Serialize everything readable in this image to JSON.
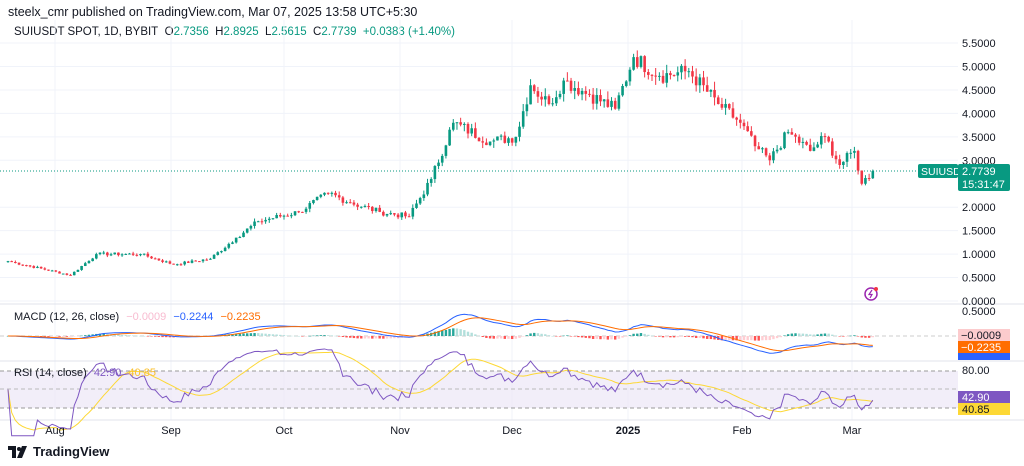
{
  "header": {
    "published": "steelx_cmr published on TradingView.com, Mar 07, 2025 13:58 UTC+5:30"
  },
  "legend": {
    "symbol": "SUIUSDT SPOT, 1D, BYBIT",
    "o_label": "O",
    "o": "2.7356",
    "h_label": "H",
    "h": "2.8925",
    "l_label": "L",
    "l": "2.5615",
    "c_label": "C",
    "c": "2.7739",
    "change": "+0.0383 (+1.40%)"
  },
  "macd": {
    "title": "MACD (12, 26, close)",
    "hist": "−0.0009",
    "macd": "−0.2244",
    "signal": "−0.2235",
    "axis_label": "0.5000"
  },
  "rsi": {
    "title": "RSI (14, close)",
    "rsi": "42.90",
    "ma": "40.85",
    "axis_label": "80.00"
  },
  "badges": {
    "symbol": "SUIUSDT",
    "price": "2.7739",
    "countdown": "15:31:47"
  },
  "footer": {
    "brand": "TradingView"
  },
  "colors": {
    "up": "#089981",
    "down": "#f23645",
    "macd": "#2962ff",
    "signal": "#ff6d00",
    "rsi": "#7e57c2",
    "rsi_ma": "#fdd835"
  },
  "chart_data": {
    "type": "candlestick",
    "symbol": "SUIUSDT",
    "interval": "1D",
    "ylim": [
      0,
      5.5
    ],
    "y_ticks": [
      "5.5000",
      "5.0000",
      "4.5000",
      "4.0000",
      "3.5000",
      "3.0000",
      "2.0000",
      "1.5000",
      "1.0000",
      "0.5000",
      "0.0000"
    ],
    "x_ticks": [
      "Aug",
      "Sep",
      "Oct",
      "Nov",
      "Dec",
      "2025",
      "Feb",
      "Mar"
    ],
    "approx_close_keypoints": [
      [
        0,
        0.85
      ],
      [
        17,
        0.55
      ],
      [
        24,
        1.0
      ],
      [
        36,
        1.0
      ],
      [
        45,
        0.78
      ],
      [
        55,
        0.9
      ],
      [
        62,
        1.35
      ],
      [
        68,
        1.7
      ],
      [
        79,
        1.9
      ],
      [
        87,
        2.3
      ],
      [
        93,
        2.1
      ],
      [
        101,
        1.9
      ],
      [
        109,
        1.8
      ],
      [
        115,
        2.6
      ],
      [
        121,
        3.8
      ],
      [
        131,
        3.4
      ],
      [
        138,
        3.5
      ],
      [
        142,
        4.6
      ],
      [
        147,
        4.2
      ],
      [
        151,
        4.7
      ],
      [
        158,
        4.4
      ],
      [
        165,
        4.1
      ],
      [
        170,
        5.2
      ],
      [
        177,
        4.8
      ],
      [
        185,
        4.9
      ],
      [
        193,
        4.2
      ],
      [
        199,
        3.8
      ],
      [
        203,
        3.3
      ],
      [
        207,
        3.0
      ],
      [
        212,
        3.6
      ],
      [
        218,
        3.2
      ],
      [
        222,
        3.5
      ],
      [
        226,
        2.9
      ],
      [
        230,
        3.2
      ],
      [
        232,
        2.5
      ],
      [
        235,
        2.77
      ]
    ]
  }
}
